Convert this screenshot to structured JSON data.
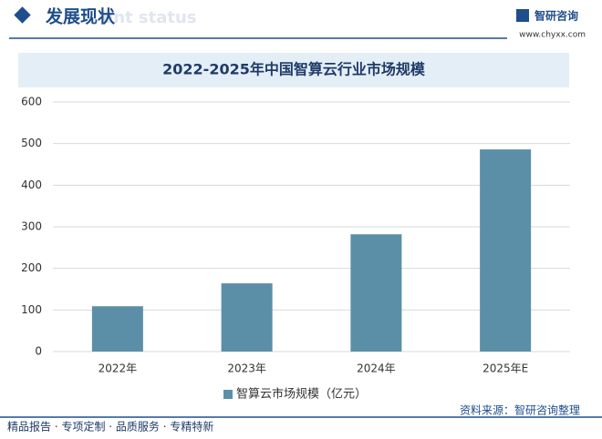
{
  "header": {
    "title": "发展现状",
    "subtitle": "ent status",
    "brand": "智研咨询",
    "url": "www.chyxx.com"
  },
  "chart_data": {
    "type": "bar",
    "title": "2022-2025年中国智算云行业市场规模",
    "categories": [
      "2022年",
      "2023年",
      "2024年",
      "2025年E"
    ],
    "series": [
      {
        "name": "智算云市场规模（亿元）",
        "color": "#5b8fa8",
        "values": [
          109,
          164,
          282,
          486
        ]
      }
    ],
    "ylim": [
      0,
      600
    ],
    "yticks": [
      0,
      100,
      200,
      300,
      400,
      500,
      600
    ],
    "grid": true,
    "legend": "bottom"
  },
  "source": "资料来源：智研咨询整理",
  "footer": "精品报告 · 专项定制 · 品质服务 · 专精特新"
}
